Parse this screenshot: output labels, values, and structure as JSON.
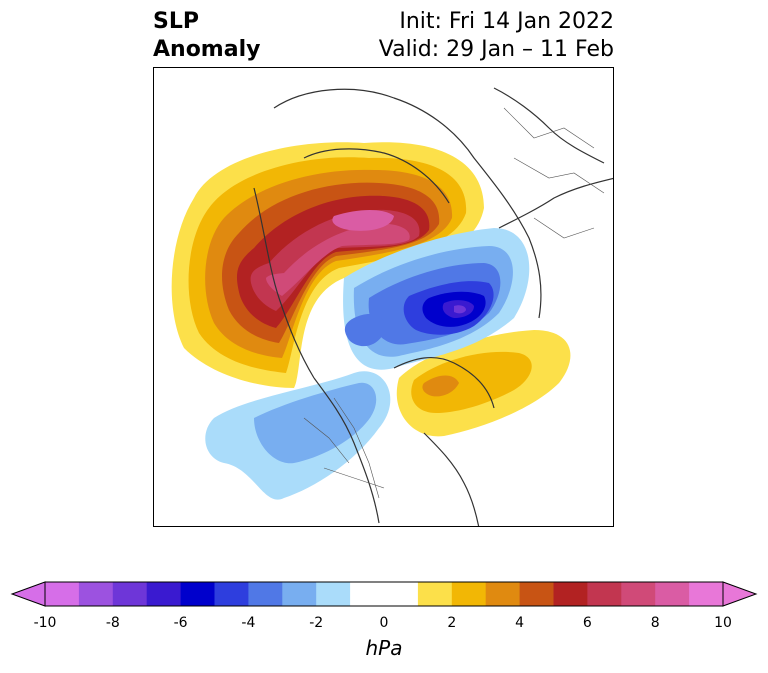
{
  "title": {
    "left_line1": "SLP",
    "left_line2": "Anomaly",
    "right_line1": "Init: Fri 14 Jan 2022",
    "right_line2": "Valid: 29 Jan – 11 Feb"
  },
  "colorbar": {
    "label": "hPa",
    "ticks": [
      "-10",
      "-8",
      "-6",
      "-4",
      "-2",
      "0",
      "2",
      "4",
      "6",
      "8",
      "10"
    ],
    "range": [
      -10,
      10
    ],
    "step": 1,
    "colors": [
      "#d66ee8",
      "#9c52e0",
      "#6e36d8",
      "#3a1ad0",
      "#0000cc",
      "#2e3ede",
      "#5078e6",
      "#78aef0",
      "#aadcfa",
      "#ffffff",
      "#ffffff",
      "#fce04a",
      "#f2b705",
      "#e08a10",
      "#c85414",
      "#b22222",
      "#c23650",
      "#d04a78",
      "#da5ca4",
      "#e877d8"
    ],
    "arrow_low_color": "#d66ee8",
    "arrow_high_color": "#e877d8"
  }
}
